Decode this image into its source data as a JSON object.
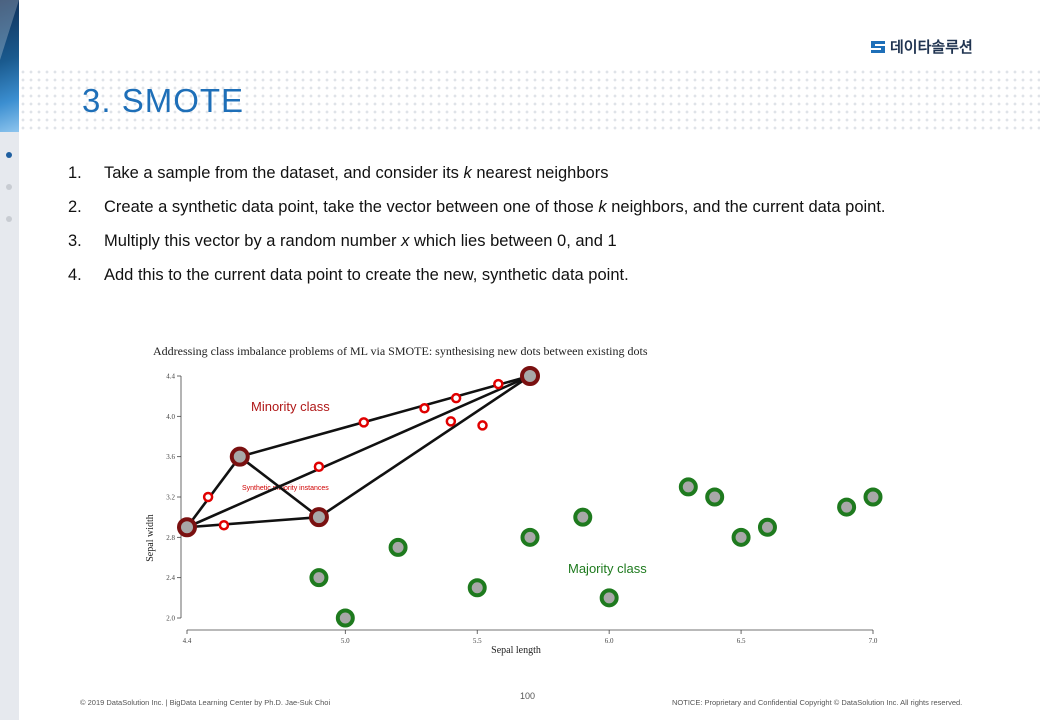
{
  "brand": {
    "logo_text": "데이타솔루션"
  },
  "slide": {
    "title": "3. SMOTE",
    "steps": [
      {
        "num": "1.",
        "parts": [
          "Take a sample from the dataset, and consider its ",
          "k",
          " nearest neighbors"
        ]
      },
      {
        "num": "2.",
        "parts": [
          "Create a synthetic data point, take the vector between one of those ",
          "k",
          " neighbors, and the current data point."
        ]
      },
      {
        "num": "3.",
        "parts": [
          "Multiply this vector by a random number ",
          "x",
          " which lies between 0, and 1"
        ]
      },
      {
        "num": "4.",
        "parts": [
          "Add this to the current data point to create the new, synthetic data point.",
          "",
          ""
        ]
      }
    ]
  },
  "footer": {
    "left": "© 2019 DataSolution Inc. | BigData Learning Center by Ph.D. Jae-Suk Choi",
    "page_number": "100",
    "right": "NOTICE: Proprietary and Confidential Copyright © DataSolution Inc. All rights reserved."
  },
  "colors": {
    "title": "#1e6fb8",
    "minority": "#c00000",
    "minority_fill": "#7a1010",
    "synthetic": "#e00000",
    "majority": "#1e7a1e",
    "point_center": "#a8a8a8"
  },
  "chart_data": {
    "type": "scatter",
    "title": "Addressing class imbalance problems of ML via SMOTE: synthesising new dots between existing dots",
    "xlabel": "Sepal length",
    "ylabel": "Sepal width",
    "xlim": [
      4.4,
      7.0
    ],
    "ylim": [
      2.0,
      4.4
    ],
    "xticks": [
      "4.4",
      "5.0",
      "5.5",
      "6.0",
      "6.5",
      "7.0"
    ],
    "yticks": [
      "2.0",
      "2.4",
      "2.8",
      "3.2",
      "3.6",
      "4.0",
      "4.4"
    ],
    "grid": false,
    "annotations": {
      "minority": "Minority class",
      "majority": "Majority class",
      "synthetic": "Synthetic minority instances"
    },
    "series": [
      {
        "role": "minority",
        "points": [
          [
            4.4,
            2.9
          ],
          [
            4.6,
            3.6
          ],
          [
            4.9,
            3.0
          ],
          [
            5.7,
            4.4
          ]
        ]
      },
      {
        "role": "synthetic",
        "points": [
          [
            4.48,
            3.2
          ],
          [
            4.54,
            2.92
          ],
          [
            4.9,
            3.5
          ],
          [
            5.07,
            3.94
          ],
          [
            5.3,
            4.08
          ],
          [
            5.4,
            3.95
          ],
          [
            5.42,
            4.18
          ],
          [
            5.52,
            3.91
          ],
          [
            5.58,
            4.32
          ]
        ]
      },
      {
        "role": "majority",
        "points": [
          [
            4.9,
            2.4
          ],
          [
            5.0,
            2.0
          ],
          [
            5.2,
            2.7
          ],
          [
            5.5,
            2.3
          ],
          [
            5.7,
            2.8
          ],
          [
            5.9,
            3.0
          ],
          [
            6.0,
            2.2
          ],
          [
            6.3,
            3.3
          ],
          [
            6.4,
            3.2
          ],
          [
            6.5,
            2.8
          ],
          [
            6.6,
            2.9
          ],
          [
            6.9,
            3.1
          ],
          [
            7.0,
            3.2
          ]
        ]
      }
    ],
    "segments": [
      [
        [
          4.4,
          2.9
        ],
        [
          4.6,
          3.6
        ]
      ],
      [
        [
          4.4,
          2.9
        ],
        [
          4.9,
          3.0
        ]
      ],
      [
        [
          4.6,
          3.6
        ],
        [
          4.9,
          3.0
        ]
      ],
      [
        [
          4.4,
          2.9
        ],
        [
          5.7,
          4.4
        ]
      ],
      [
        [
          4.6,
          3.6
        ],
        [
          5.7,
          4.4
        ]
      ],
      [
        [
          4.9,
          3.0
        ],
        [
          5.7,
          4.4
        ]
      ]
    ]
  }
}
